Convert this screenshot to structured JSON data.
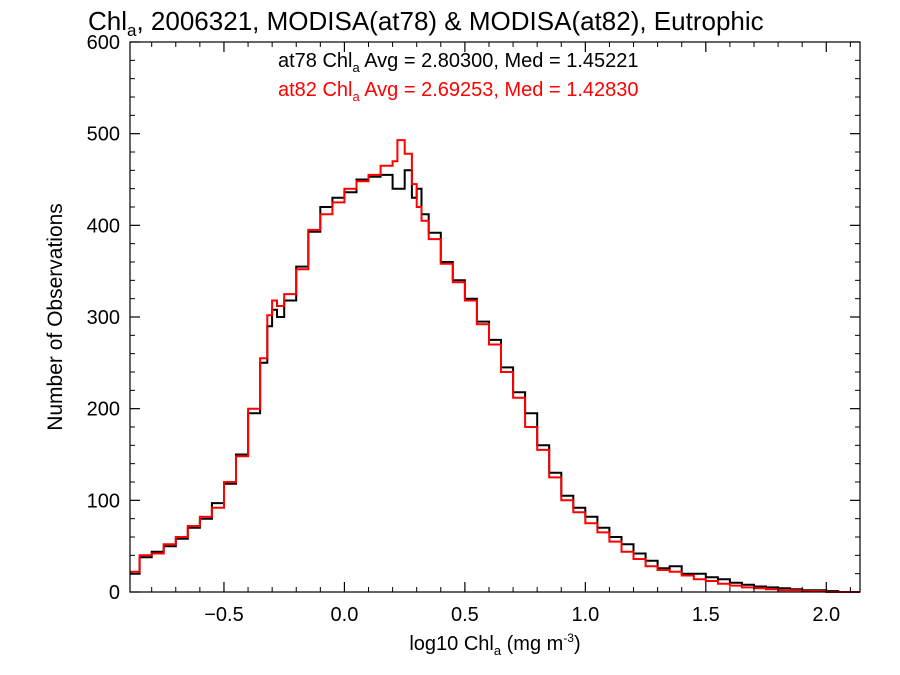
{
  "chart_data": {
    "type": "line",
    "title": {
      "pre": "Chl",
      "sub": "a",
      "post": ", 2006321, MODISA(at78) & MODISA(at82), Eutrophic"
    },
    "xlabel": {
      "pre": "log10 Chl",
      "sub": "a",
      "mid": " (mg m",
      "sup": "-3",
      "post": ")"
    },
    "ylabel": "Number of Observations",
    "xlim": [
      -0.89,
      2.14
    ],
    "ylim": [
      0,
      600
    ],
    "x_ticks": [
      {
        "value": -0.5,
        "label": "−0.5"
      },
      {
        "value": 0.0,
        "label": "0.0"
      },
      {
        "value": 0.5,
        "label": "0.5"
      },
      {
        "value": 1.0,
        "label": "1.0"
      },
      {
        "value": 1.5,
        "label": "1.5"
      },
      {
        "value": 2.0,
        "label": "2.0"
      }
    ],
    "y_ticks": [
      0,
      100,
      200,
      300,
      400,
      500,
      600
    ],
    "grid": false,
    "legend_position": "top-center",
    "annotations": [
      {
        "label_pre": "at78 Chl",
        "label_sub": "a",
        "label_post": " Avg = 2.80300, Med = 1.45221",
        "color": "#000000"
      },
      {
        "label_pre": "at82 Chl",
        "label_sub": "a",
        "label_post": " Avg = 2.69253, Med = 1.42830",
        "color": "#ff0000"
      }
    ],
    "series": [
      {
        "color": "#000000",
        "style": "step",
        "x": [
          -0.89,
          -0.85,
          -0.8,
          -0.75,
          -0.7,
          -0.65,
          -0.6,
          -0.55,
          -0.5,
          -0.45,
          -0.4,
          -0.35,
          -0.32,
          -0.3,
          -0.28,
          -0.25,
          -0.2,
          -0.15,
          -0.1,
          -0.05,
          0.0,
          0.05,
          0.1,
          0.15,
          0.2,
          0.25,
          0.28,
          0.3,
          0.32,
          0.35,
          0.4,
          0.45,
          0.5,
          0.55,
          0.6,
          0.65,
          0.7,
          0.75,
          0.8,
          0.85,
          0.9,
          0.95,
          1.0,
          1.05,
          1.1,
          1.15,
          1.2,
          1.25,
          1.3,
          1.35,
          1.4,
          1.45,
          1.5,
          1.55,
          1.6,
          1.65,
          1.7,
          1.75,
          1.8,
          1.85,
          1.9,
          1.95,
          2.0,
          2.05,
          2.1
        ],
        "y": [
          20,
          38,
          44,
          50,
          58,
          70,
          80,
          97,
          118,
          150,
          195,
          250,
          290,
          308,
          300,
          318,
          355,
          393,
          420,
          430,
          436,
          450,
          453,
          455,
          440,
          460,
          430,
          440,
          412,
          392,
          360,
          340,
          320,
          295,
          275,
          245,
          218,
          195,
          160,
          130,
          105,
          92,
          82,
          70,
          60,
          52,
          42,
          34,
          26,
          28,
          20,
          20,
          16,
          14,
          10,
          8,
          6,
          5,
          4,
          3,
          2,
          2,
          1,
          0,
          0
        ]
      },
      {
        "color": "#ff0000",
        "style": "step",
        "x": [
          -0.89,
          -0.85,
          -0.8,
          -0.75,
          -0.7,
          -0.65,
          -0.6,
          -0.55,
          -0.5,
          -0.45,
          -0.4,
          -0.35,
          -0.32,
          -0.3,
          -0.28,
          -0.25,
          -0.2,
          -0.15,
          -0.1,
          -0.05,
          0.0,
          0.05,
          0.1,
          0.15,
          0.2,
          0.22,
          0.25,
          0.28,
          0.3,
          0.32,
          0.35,
          0.4,
          0.45,
          0.5,
          0.55,
          0.6,
          0.65,
          0.7,
          0.75,
          0.8,
          0.85,
          0.9,
          0.95,
          1.0,
          1.05,
          1.1,
          1.15,
          1.2,
          1.25,
          1.3,
          1.35,
          1.4,
          1.45,
          1.5,
          1.55,
          1.6,
          1.65,
          1.7,
          1.75,
          1.8,
          1.85,
          1.9,
          1.95,
          2.0,
          2.05,
          2.1
        ],
        "y": [
          22,
          40,
          42,
          52,
          60,
          72,
          82,
          92,
          120,
          148,
          200,
          255,
          302,
          318,
          312,
          325,
          352,
          395,
          412,
          425,
          440,
          448,
          455,
          465,
          470,
          493,
          478,
          445,
          420,
          405,
          385,
          358,
          338,
          318,
          292,
          270,
          240,
          212,
          180,
          155,
          125,
          100,
          87,
          75,
          65,
          55,
          44,
          36,
          28,
          24,
          22,
          18,
          14,
          12,
          9,
          7,
          5,
          4,
          3,
          2,
          2,
          1,
          1,
          0,
          0,
          0
        ]
      }
    ]
  }
}
